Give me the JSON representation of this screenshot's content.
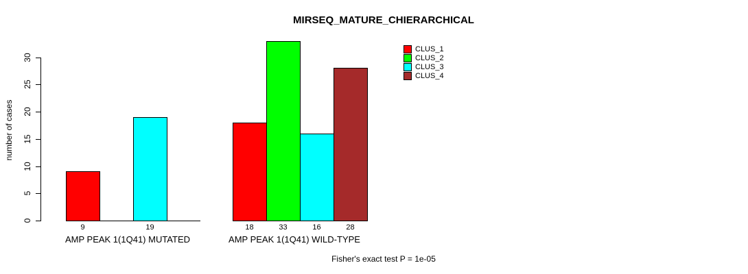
{
  "page": {
    "background": "#ffffff",
    "text_color": "#000000"
  },
  "chart_data": {
    "type": "bar",
    "title": "MIRSEQ_MATURE_CHIERARCHICAL",
    "ylabel": "number of cases",
    "xlabel": "",
    "ylim": [
      0,
      33
    ],
    "yticks": [
      0,
      5,
      10,
      15,
      20,
      25,
      30
    ],
    "grid": false,
    "legend_position": "top-right-inside",
    "legend": [
      {
        "label": "CLUS_1",
        "color": "#FF0000"
      },
      {
        "label": "CLUS_2",
        "color": "#00FF00"
      },
      {
        "label": "CLUS_3",
        "color": "#00FFFF"
      },
      {
        "label": "CLUS_4",
        "color": "#A52A2A"
      }
    ],
    "groups": [
      {
        "label": "AMP PEAK 1(1Q41) MUTATED",
        "values": [
          9,
          null,
          19,
          null
        ]
      },
      {
        "label": "AMP PEAK 1(1Q41) WILD-TYPE",
        "values": [
          18,
          33,
          16,
          28
        ]
      }
    ],
    "footnote": "Fisher's exact test P = 1e-05"
  }
}
